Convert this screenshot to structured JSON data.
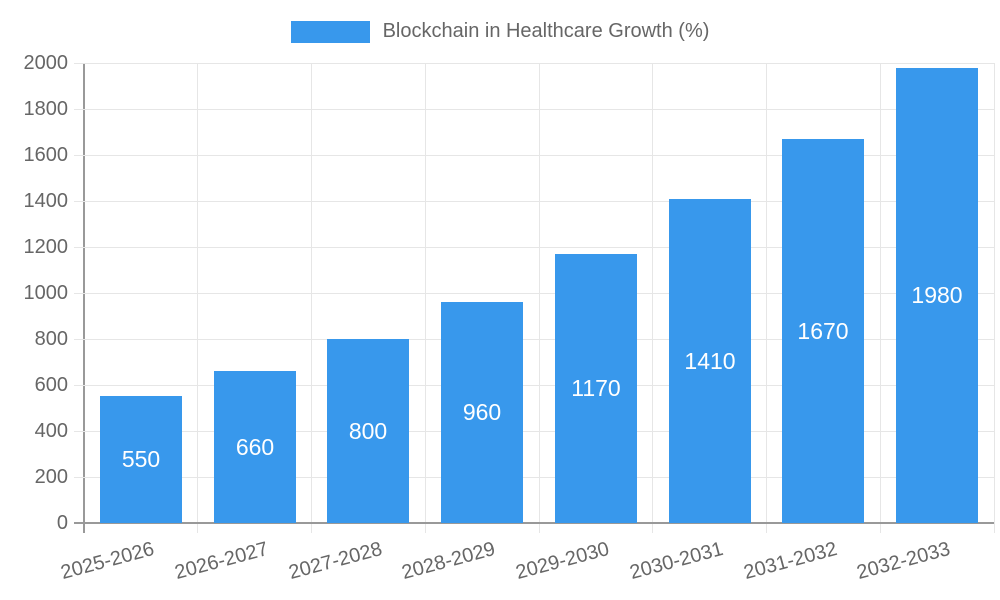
{
  "legend": {
    "label": "Blockchain in Healthcare Growth (%)"
  },
  "colors": {
    "bar": "#3898ec",
    "axis_line": "#999999",
    "gridline": "#e6e6e6",
    "tick_text": "#666666",
    "legend_text": "#666666",
    "value_label_text": "#ffffff",
    "background": "#ffffff"
  },
  "chart_data": {
    "type": "bar",
    "title": "Blockchain in Healthcare Growth (%)",
    "categories": [
      "2025-2026",
      "2026-2027",
      "2027-2028",
      "2028-2029",
      "2029-2030",
      "2030-2031",
      "2031-2032",
      "2032-2033"
    ],
    "series": [
      {
        "name": "Blockchain in Healthcare Growth (%)",
        "values": [
          550,
          660,
          800,
          960,
          1170,
          1410,
          1670,
          1980
        ]
      }
    ],
    "values": [
      550,
      660,
      800,
      960,
      1170,
      1410,
      1670,
      1980
    ],
    "xlabel": "",
    "ylabel": "",
    "ylim": [
      0,
      2000
    ],
    "yticks": [
      0,
      200,
      400,
      600,
      800,
      1000,
      1200,
      1400,
      1600,
      1800,
      2000
    ],
    "grid": true,
    "legend_position": "top-center",
    "value_labels_position": "inside-center",
    "x_tick_rotation_deg": -15
  }
}
